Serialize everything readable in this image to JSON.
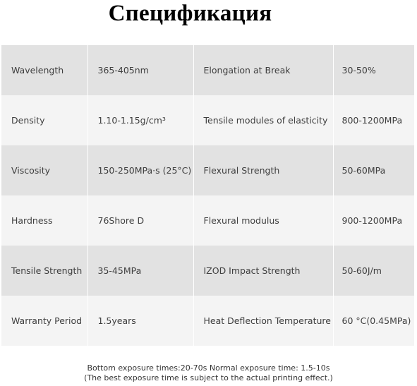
{
  "title": "Спецификация",
  "table": {
    "rows": [
      {
        "label": "Wavelength",
        "value": "365-405nm",
        "label2": "Elongation at Break",
        "value2": "30-50%"
      },
      {
        "label": "Density",
        "value": "1.10-1.15g/cm³",
        "label2": "Tensile modules of elasticity",
        "value2": "800-1200MPa"
      },
      {
        "label": "Viscosity",
        "value": "150-250MPa·s (25°C)",
        "label2": "Flexural Strength",
        "value2": "50-60MPa"
      },
      {
        "label": "Hardness",
        "value": "76Shore D",
        "label2": "Flexural modulus",
        "value2": "900-1200MPa"
      },
      {
        "label": "Tensile Strength",
        "value": "35-45MPa",
        "label2": "IZOD Impact Strength",
        "value2": "50-60J/m"
      },
      {
        "label": "Warranty Period",
        "value": "1.5years",
        "label2": "Heat Deflection Temperature",
        "value2": "60 °C(0.45MPa)"
      }
    ]
  },
  "footer": {
    "line1": "Bottom exposure times:20-70s Normal exposure time: 1.5-10s",
    "line2": "(The best exposure time is subject to the actual printing effect.)"
  }
}
